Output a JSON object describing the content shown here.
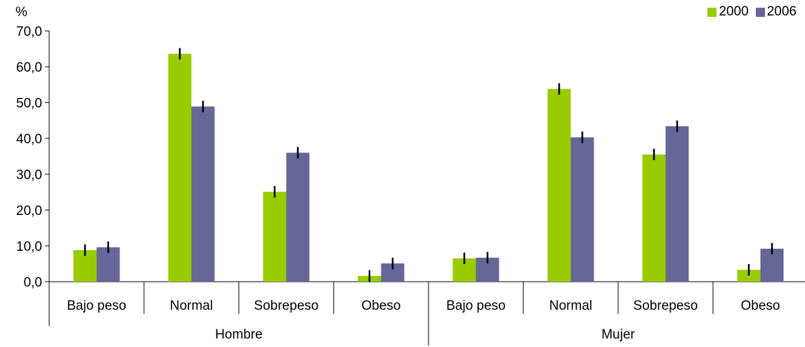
{
  "chart_data": {
    "type": "bar",
    "ylabel": "%",
    "ylim": [
      0,
      70
    ],
    "yticks": [
      "0,0",
      "10,0",
      "20,0",
      "30,0",
      "40,0",
      "50,0",
      "60,0",
      "70,0"
    ],
    "groups": [
      "Hombre",
      "Mujer"
    ],
    "categories": [
      "Bajo peso",
      "Normal",
      "Sobrepeso",
      "Obeso"
    ],
    "series": [
      {
        "name": "2000",
        "color": "#99cc00",
        "values": [
          [
            8.8,
            63.6,
            25.1,
            1.6
          ],
          [
            6.5,
            53.8,
            35.5,
            3.3
          ]
        ],
        "errors": [
          [
            1.6,
            1.6,
            1.6,
            1.6
          ],
          [
            1.6,
            1.6,
            1.6,
            1.6
          ]
        ]
      },
      {
        "name": "2006",
        "color": "#666699",
        "values": [
          [
            9.6,
            48.9,
            36.0,
            5.1
          ],
          [
            6.7,
            40.3,
            43.4,
            9.2
          ]
        ],
        "errors": [
          [
            1.6,
            1.6,
            1.6,
            1.6
          ],
          [
            1.6,
            1.6,
            1.6,
            1.6
          ]
        ]
      }
    ],
    "grid": false,
    "legend_position": "top-right"
  }
}
